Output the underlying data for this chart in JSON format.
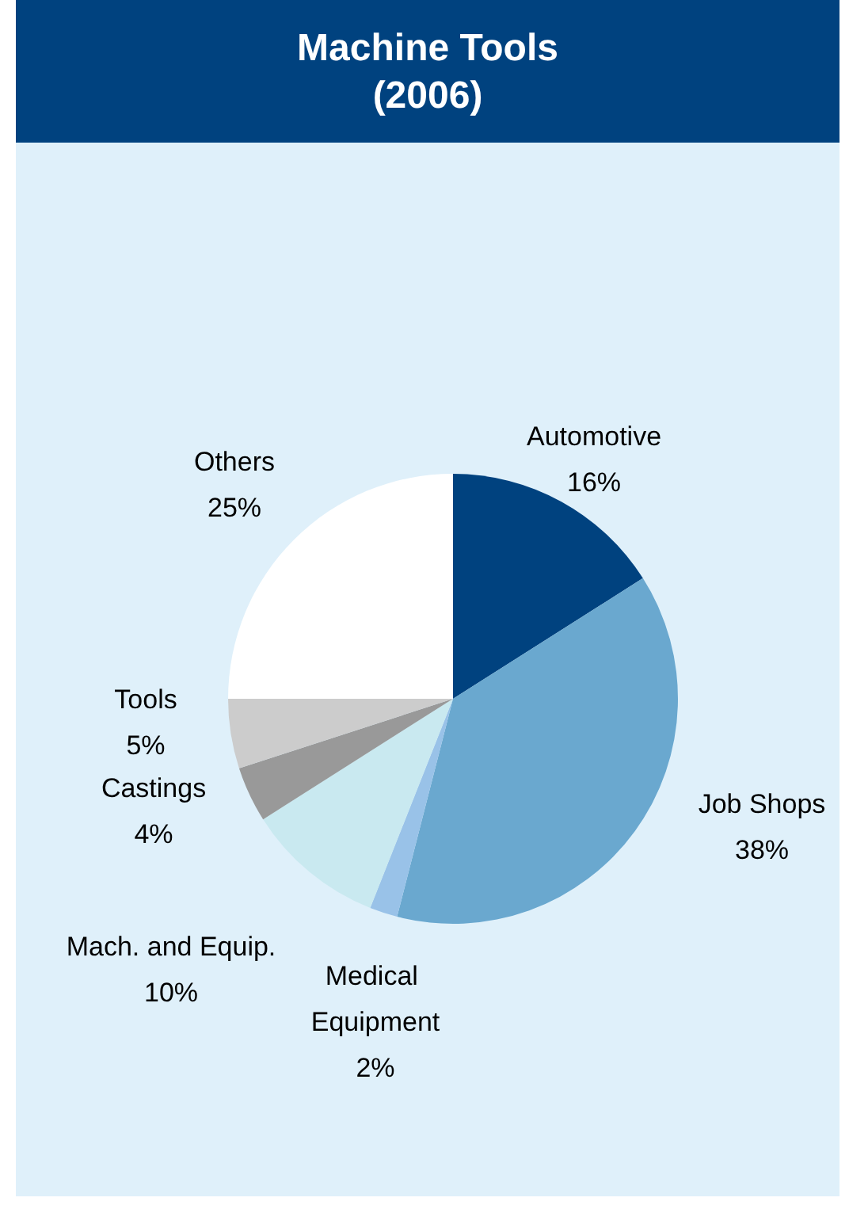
{
  "chart_data": {
    "type": "pie",
    "title": "Machine Tools",
    "subtitle": "(2006)",
    "categories": [
      "Automotive",
      "Job Shops",
      "Medical Equipment",
      "Mach. and Equip.",
      "Castings",
      "Tools",
      "Others"
    ],
    "values": [
      16,
      38,
      2,
      10,
      4,
      5,
      25
    ],
    "value_labels": [
      "16%",
      "38%",
      "2%",
      "10%",
      "4%",
      "5%",
      "25%"
    ],
    "colors": [
      "#00427f",
      "#6aa8cf",
      "#99c2e8",
      "#c9e9f0",
      "#999999",
      "#cccccc",
      "#ffffff"
    ],
    "legend": false
  }
}
